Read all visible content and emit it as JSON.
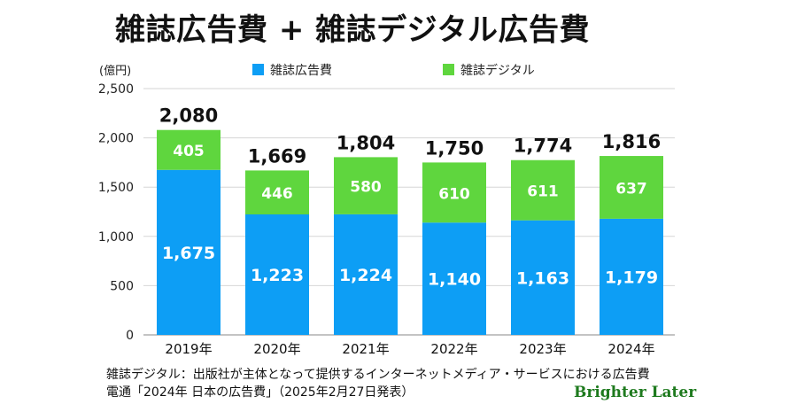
{
  "title": "雑誌広告費 + 雑誌デジタル広告費",
  "colors": {
    "print": "#0d9ef5",
    "digital": "#5fd63e"
  },
  "chart_data": {
    "type": "bar",
    "stacked": true,
    "unit_label": "(億円)",
    "categories": [
      "2019年",
      "2020年",
      "2021年",
      "2022年",
      "2023年",
      "2024年"
    ],
    "series": [
      {
        "name": "雑誌広告費",
        "values": [
          1675,
          1223,
          1224,
          1140,
          1163,
          1179
        ],
        "labels": [
          "1,675",
          "1,223",
          "1,224",
          "1,140",
          "1,163",
          "1,179"
        ]
      },
      {
        "name": "雑誌デジタル",
        "values": [
          405,
          446,
          580,
          610,
          611,
          637
        ],
        "labels": [
          "405",
          "446",
          "580",
          "610",
          "611",
          "637"
        ]
      }
    ],
    "totals": [
      2080,
      1669,
      1804,
      1750,
      1774,
      1816
    ],
    "total_labels": [
      "2,080",
      "1,669",
      "1,804",
      "1,750",
      "1,774",
      "1,816"
    ],
    "ylim": [
      0,
      2500
    ],
    "yticks": [
      0,
      500,
      1000,
      1500,
      2000,
      2500
    ],
    "ytick_labels": [
      "0",
      "500",
      "1,000",
      "1,500",
      "2,000",
      "2,500"
    ],
    "grid": true,
    "legend_position": "top"
  },
  "notes": [
    "雑誌デジタル：出版社が主体となって提供するインターネットメディア・サービスにおける広告費",
    "電通「2024年 日本の広告費」（2025年2月27日発表）"
  ],
  "brand": "Brighter Later"
}
